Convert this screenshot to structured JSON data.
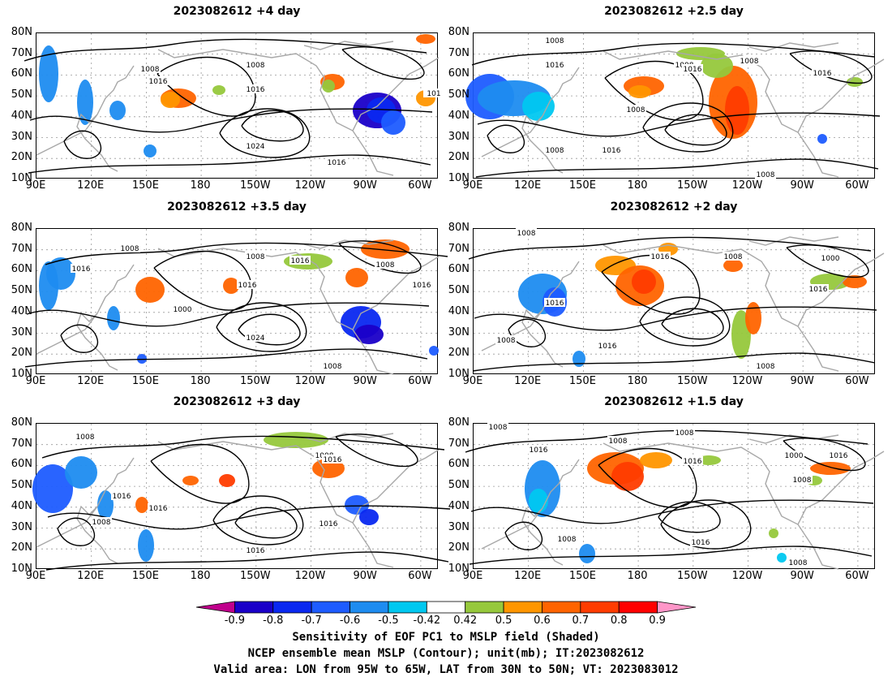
{
  "panels": [
    {
      "title": "2023082612 +4 day",
      "contour_labels": [
        "1008",
        "1016",
        "1008",
        "1016",
        "1024",
        "1016",
        "101"
      ]
    },
    {
      "title": "2023082612 +2.5 day",
      "contour_labels": [
        "1008",
        "1016",
        "1008",
        "1016",
        "1008",
        "1016",
        "1008",
        "1008",
        "1016",
        "1008"
      ]
    },
    {
      "title": "2023082612 +3.5 day",
      "contour_labels": [
        "1008",
        "1016",
        "1000",
        "1016",
        "1008",
        "1016",
        "1008",
        "1024",
        "1016",
        "1008"
      ]
    },
    {
      "title": "2023082612 +2 day",
      "contour_labels": [
        "1008",
        "1016",
        "1008",
        "1016",
        "1008",
        "1000",
        "1016",
        "1016",
        "1008"
      ]
    },
    {
      "title": "2023082612 +3 day",
      "contour_labels": [
        "1008",
        "1016",
        "1008",
        "1016",
        "1008",
        "1016",
        "1016",
        "1016"
      ]
    },
    {
      "title": "2023082612 +1.5 day",
      "contour_labels": [
        "1008",
        "1016",
        "1008",
        "1008",
        "1016",
        "1000",
        "1016",
        "1008",
        "1008",
        "1016",
        "1008"
      ]
    }
  ],
  "chart_data": {
    "type": "heatmap",
    "xlabels": [
      "90E",
      "120E",
      "150E",
      "180",
      "150W",
      "120W",
      "90W",
      "60W"
    ],
    "ylabels": [
      "80N",
      "70N",
      "60N",
      "50N",
      "40N",
      "30N",
      "20N",
      "10N"
    ],
    "colorbar": {
      "levels": [
        "-0.9",
        "-0.8",
        "-0.7",
        "-0.6",
        "-0.5",
        "-0.42",
        "0.42",
        "0.5",
        "0.6",
        "0.7",
        "0.8",
        "0.9"
      ],
      "colors": [
        "#c0008c",
        "#1a00c8",
        "#0a28f0",
        "#1e5cff",
        "#1e8cf0",
        "#00c8f0",
        "#ffffff",
        "#96c83c",
        "#ff9600",
        "#ff6400",
        "#ff3c00",
        "#ff0000",
        "#ff96c8"
      ]
    },
    "shaded_field": "Sensitivity of EOF PC1 to MSLP",
    "contour_field": "NCEP ensemble mean MSLP (mb)"
  },
  "captions": [
    "Sensitivity of EOF PC1 to MSLP field (Shaded)",
    "NCEP ensemble mean MSLP (Contour); unit(mb); IT:2023082612",
    "Valid area: LON from 95W to 65W, LAT from 30N to 50N; VT: 2023083012"
  ]
}
